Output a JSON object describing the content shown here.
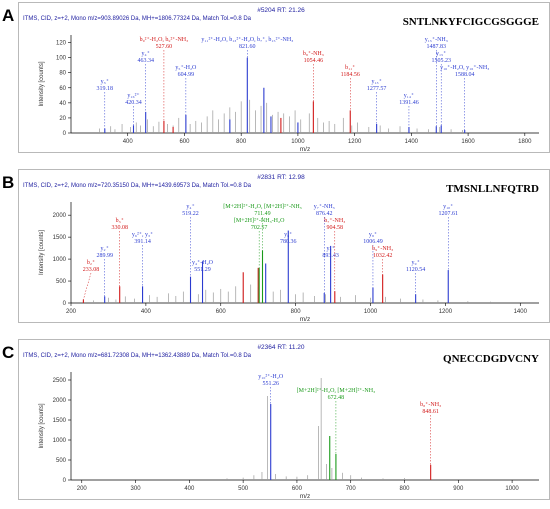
{
  "figure_letters": [
    "A",
    "B",
    "C"
  ],
  "colors": {
    "blue": "#2b3bd0",
    "red": "#d21919",
    "green": "#1a9a1a",
    "gray": "#9a9a9a",
    "header": "#2020a0"
  },
  "chart_data": [
    {
      "type": "bar",
      "letter": "A",
      "header_top": "#5204  RT: 21.26",
      "header_line": "ITMS, CID, z=+2, Mono m/z=903.89026 Da, MH+=1806.77324 Da, Match Tol.=0.8 Da",
      "peptide": "SNTLNKYFCIGCGSGGGE",
      "xlabel": "m/z",
      "ylabel": "Intensity [counts]",
      "xlim": [
        200,
        1850
      ],
      "ylim": [
        0,
        130
      ],
      "xticks": [
        400,
        600,
        800,
        1000,
        1200,
        1400,
        1600,
        1800
      ],
      "yticks": [
        0,
        20,
        40,
        60,
        80,
        100,
        120
      ],
      "peaks": {
        "gray": [
          [
            300,
            6
          ],
          [
            340,
            9
          ],
          [
            355,
            5
          ],
          [
            380,
            12
          ],
          [
            410,
            8
          ],
          [
            430,
            14
          ],
          [
            445,
            10
          ],
          [
            470,
            18
          ],
          [
            490,
            9
          ],
          [
            510,
            15
          ],
          [
            540,
            12
          ],
          [
            560,
            10
          ],
          [
            580,
            20
          ],
          [
            620,
            12
          ],
          [
            640,
            16
          ],
          [
            660,
            14
          ],
          [
            680,
            22
          ],
          [
            700,
            30
          ],
          [
            720,
            18
          ],
          [
            740,
            26
          ],
          [
            760,
            34
          ],
          [
            780,
            28
          ],
          [
            800,
            42
          ],
          [
            830,
            44
          ],
          [
            850,
            30
          ],
          [
            870,
            36
          ],
          [
            890,
            40
          ],
          [
            910,
            24
          ],
          [
            930,
            28
          ],
          [
            950,
            26
          ],
          [
            970,
            22
          ],
          [
            990,
            30
          ],
          [
            1010,
            18
          ],
          [
            1040,
            26
          ],
          [
            1070,
            20
          ],
          [
            1090,
            14
          ],
          [
            1110,
            16
          ],
          [
            1130,
            12
          ],
          [
            1160,
            20
          ],
          [
            1190,
            10
          ],
          [
            1210,
            14
          ],
          [
            1250,
            8
          ],
          [
            1290,
            10
          ],
          [
            1320,
            6
          ],
          [
            1360,
            9
          ],
          [
            1420,
            6
          ],
          [
            1460,
            5
          ],
          [
            1500,
            8
          ],
          [
            1540,
            5
          ],
          [
            1580,
            4
          ]
        ],
        "blue": [
          [
            319.18,
            6
          ],
          [
            420.34,
            10
          ],
          [
            463.34,
            28
          ],
          [
            604.99,
            24
          ],
          [
            821.6,
            100
          ],
          [
            1277.57,
            12
          ],
          [
            1391.46,
            8
          ],
          [
            1487.83,
            9
          ],
          [
            1505.23,
            10
          ],
          [
            1588.04,
            4
          ],
          [
            760,
            18
          ],
          [
            905,
            22
          ],
          [
            880,
            60
          ],
          [
            1000,
            14
          ]
        ],
        "red": [
          [
            527.6,
            16
          ],
          [
            1054.46,
            42
          ],
          [
            1184.56,
            30
          ],
          [
            560,
            8
          ],
          [
            940,
            20
          ]
        ]
      },
      "labels": [
        {
          "text": "y₁₁²⁺-H₂O, b₁₃²⁺-H₂O, b₇⁺, b₁₅²⁺-NH₃",
          "value": "821.60",
          "x": 821.6,
          "color": "blue"
        },
        {
          "text": "y₄⁺",
          "value": "463.34",
          "x": 463.34,
          "color": "blue"
        },
        {
          "text": "y₅⁺-H₂O",
          "value": "604.99",
          "x": 604.99,
          "color": "blue"
        },
        {
          "text": "y₃⁺",
          "value": "319.18",
          "x": 319.18,
          "color": "blue"
        },
        {
          "text": "y₁₆²⁺",
          "value": "420.34",
          "x": 420.34,
          "color": "blue"
        },
        {
          "text": "b₉²⁺-H₂O, b₉²⁺-NH₃",
          "value": "527.60",
          "x": 527.6,
          "color": "red"
        },
        {
          "text": "b₈⁺-NH₃",
          "value": "1054.46",
          "x": 1054.46,
          "color": "red"
        },
        {
          "text": "b₁₁⁺",
          "value": "1184.56",
          "x": 1184.56,
          "color": "red"
        },
        {
          "text": "y₁₃⁺",
          "value": "1277.57",
          "x": 1277.57,
          "color": "blue"
        },
        {
          "text": "y₁₄⁺",
          "value": "1391.46",
          "x": 1391.46,
          "color": "blue"
        },
        {
          "text": "y₁₅⁺-NH₃",
          "value": "1487.83",
          "x": 1487.83,
          "color": "blue"
        },
        {
          "text": "y₁₅⁺",
          "value": "1505.23",
          "x": 1505.23,
          "color": "blue"
        },
        {
          "text": "y₁₆⁺-H₂O, y₁₆⁺-NH₃",
          "value": "1588.04",
          "x": 1588.04,
          "color": "blue"
        }
      ]
    },
    {
      "type": "bar",
      "letter": "B",
      "header_top": "#2831  RT: 12.98",
      "header_line": "ITMS, CID, z=+2, Mono m/z=720.35150 Da, MH+=1439.69573 Da, Match Tol.=0.8 Da",
      "peptide": "TMSNLLNFQTRD",
      "xlabel": "m/z",
      "ylabel": "Intensity [counts]",
      "xlim": [
        200,
        1450
      ],
      "ylim": [
        0,
        2300
      ],
      "xticks": [
        200,
        400,
        600,
        800,
        1000,
        1200,
        1400
      ],
      "yticks": [
        0,
        500,
        1000,
        1500,
        2000
      ],
      "peaks": {
        "gray": [
          [
            260,
            60
          ],
          [
            300,
            120
          ],
          [
            320,
            80
          ],
          [
            345,
            150
          ],
          [
            370,
            100
          ],
          [
            410,
            180
          ],
          [
            430,
            140
          ],
          [
            460,
            220
          ],
          [
            480,
            160
          ],
          [
            500,
            260
          ],
          [
            540,
            200
          ],
          [
            560,
            300
          ],
          [
            580,
            240
          ],
          [
            600,
            320
          ],
          [
            620,
            260
          ],
          [
            640,
            380
          ],
          [
            660,
            300
          ],
          [
            680,
            420
          ],
          [
            700,
            360
          ],
          [
            740,
            260
          ],
          [
            760,
            300
          ],
          [
            800,
            200
          ],
          [
            820,
            240
          ],
          [
            850,
            160
          ],
          [
            880,
            200
          ],
          [
            920,
            140
          ],
          [
            960,
            180
          ],
          [
            1000,
            120
          ],
          [
            1040,
            140
          ],
          [
            1080,
            100
          ],
          [
            1140,
            80
          ],
          [
            1180,
            60
          ],
          [
            1260,
            40
          ],
          [
            1320,
            30
          ]
        ],
        "blue": [
          [
            289.99,
            150
          ],
          [
            391.14,
            380
          ],
          [
            519.22,
            600
          ],
          [
            551.29,
            950
          ],
          [
            780.36,
            1650
          ],
          [
            876.42,
            230
          ],
          [
            893.43,
            1300
          ],
          [
            1006.49,
            350
          ],
          [
            1120.54,
            200
          ],
          [
            1207.61,
            750
          ],
          [
            720,
            900
          ]
        ],
        "red": [
          [
            233.08,
            80
          ],
          [
            330.08,
            380
          ],
          [
            904.58,
            270
          ],
          [
            1032.42,
            650
          ],
          [
            660,
            700
          ],
          [
            700,
            800
          ]
        ],
        "green": [
          [
            702.57,
            800
          ],
          [
            711.49,
            1200
          ]
        ]
      },
      "labels": [
        {
          "text": "[M+2H]²⁺-H₂O, [M+2H]²⁺-NH₃",
          "value": "711.49",
          "x": 711.49,
          "color": "green"
        },
        {
          "text": "[M+2H]²⁺-NH₃-H₂O",
          "value": "702.57",
          "x": 702.57,
          "color": "green"
        },
        {
          "text": "y₆⁺",
          "value": "780.36",
          "x": 780.36,
          "color": "blue"
        },
        {
          "text": "y₇⁺",
          "value": "893.43",
          "x": 893.43,
          "color": "blue"
        },
        {
          "text": "y₄⁺-H₂O",
          "value": "551.29",
          "x": 551.29,
          "color": "blue"
        },
        {
          "text": "y₄⁺",
          "value": "519.22",
          "x": 519.22,
          "color": "blue"
        },
        {
          "text": "b₃⁺",
          "value": "330.08",
          "x": 330.08,
          "color": "red"
        },
        {
          "text": "y₆²⁺, y₃⁺",
          "value": "391.14",
          "x": 391.14,
          "color": "blue"
        },
        {
          "text": "y₂⁺",
          "value": "289.99",
          "x": 289.99,
          "color": "blue"
        },
        {
          "text": "b₂⁺",
          "value": "233.08",
          "x": 233.08,
          "color": "red"
        },
        {
          "text": "y₇⁺-NH₃",
          "value": "876.42",
          "x": 876.42,
          "color": "blue"
        },
        {
          "text": "b₇⁺-NH₃",
          "value": "904.58",
          "x": 904.58,
          "color": "red"
        },
        {
          "text": "y₈⁺",
          "value": "1006.49",
          "x": 1006.49,
          "color": "blue"
        },
        {
          "text": "b₉⁺-NH₃",
          "value": "1032.42",
          "x": 1032.42,
          "color": "red"
        },
        {
          "text": "y₉⁺",
          "value": "1120.54",
          "x": 1120.54,
          "color": "blue"
        },
        {
          "text": "y₁₀⁺",
          "value": "1207.61",
          "x": 1207.61,
          "color": "blue"
        }
      ]
    },
    {
      "type": "bar",
      "letter": "C",
      "header_top": "#2364  RT: 11.20",
      "header_line": "ITMS, CID, z=+2, Mono m/z=681.72308 Da, MH+=1362.43889 Da, Match Tol.=0.8 Da",
      "peptide": "QNECCDGDVCNY",
      "xlabel": "m/z",
      "ylabel": "Intensity [counts]",
      "xlim": [
        180,
        1050
      ],
      "ylim": [
        0,
        2700
      ],
      "xticks": [
        200,
        300,
        400,
        500,
        600,
        700,
        800,
        900,
        1000
      ],
      "yticks": [
        0,
        500,
        1000,
        1500,
        2000,
        2500
      ],
      "peaks": {
        "gray": [
          [
            470,
            40
          ],
          [
            500,
            60
          ],
          [
            520,
            120
          ],
          [
            535,
            200
          ],
          [
            545,
            2100
          ],
          [
            560,
            150
          ],
          [
            580,
            90
          ],
          [
            600,
            80
          ],
          [
            620,
            120
          ],
          [
            640,
            1350
          ],
          [
            645,
            2550
          ],
          [
            655,
            400
          ],
          [
            665,
            300
          ],
          [
            685,
            180
          ],
          [
            700,
            120
          ],
          [
            720,
            60
          ],
          [
            760,
            40
          ],
          [
            800,
            50
          ]
        ],
        "blue": [
          [
            551.26,
            1900
          ]
        ],
        "red": [
          [
            848.61,
            380
          ]
        ],
        "green": [
          [
            661,
            1100
          ],
          [
            672.48,
            650
          ]
        ]
      },
      "labels": [
        {
          "text": "y₁₀²⁺-H₂O",
          "value": "551.26",
          "x": 551.26,
          "color": "blue"
        },
        {
          "text": "[M+2H]²⁺-H₂O, [M+2H]²⁺-NH₃",
          "value": "672.48",
          "x": 672.48,
          "color": "green"
        },
        {
          "text": "b₈⁺-NH₃",
          "value": "848.61",
          "x": 848.61,
          "color": "red"
        }
      ]
    }
  ]
}
